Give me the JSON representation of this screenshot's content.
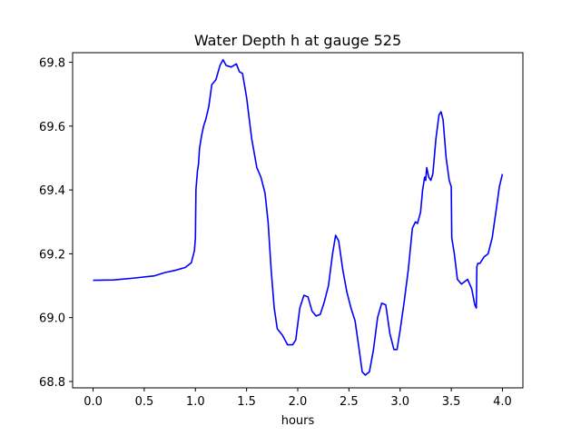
{
  "chart_data": {
    "type": "line",
    "title": "Water Depth h at gauge 525",
    "xlabel": "hours",
    "ylabel": "",
    "xlim": [
      -0.2,
      4.2
    ],
    "ylim": [
      68.78,
      69.83
    ],
    "x_ticks": [
      0.0,
      0.5,
      1.0,
      1.5,
      2.0,
      2.5,
      3.0,
      3.5,
      4.0
    ],
    "x_tick_labels": [
      "0.0",
      "0.5",
      "1.0",
      "1.5",
      "2.0",
      "2.5",
      "3.0",
      "3.5",
      "4.0"
    ],
    "y_ticks": [
      68.8,
      69.0,
      69.2,
      69.4,
      69.6,
      69.8
    ],
    "y_tick_labels": [
      "68.8",
      "69.0",
      "69.2",
      "69.4",
      "69.6",
      "69.8"
    ],
    "grid": false,
    "legend": "none",
    "series": [
      {
        "color": "#0000ff",
        "points": [
          [
            0.0,
            69.117
          ],
          [
            0.2,
            69.118
          ],
          [
            0.4,
            69.124
          ],
          [
            0.6,
            69.131
          ],
          [
            0.7,
            69.141
          ],
          [
            0.8,
            69.148
          ],
          [
            0.9,
            69.157
          ],
          [
            0.96,
            69.172
          ],
          [
            0.99,
            69.21
          ],
          [
            1.0,
            69.25
          ],
          [
            1.005,
            69.4
          ],
          [
            1.02,
            69.46
          ],
          [
            1.03,
            69.48
          ],
          [
            1.04,
            69.53
          ],
          [
            1.06,
            69.57
          ],
          [
            1.08,
            69.6
          ],
          [
            1.1,
            69.62
          ],
          [
            1.13,
            69.66
          ],
          [
            1.16,
            69.73
          ],
          [
            1.2,
            69.745
          ],
          [
            1.24,
            69.79
          ],
          [
            1.27,
            69.808
          ],
          [
            1.3,
            69.79
          ],
          [
            1.35,
            69.785
          ],
          [
            1.4,
            69.795
          ],
          [
            1.43,
            69.77
          ],
          [
            1.46,
            69.765
          ],
          [
            1.5,
            69.69
          ],
          [
            1.55,
            69.56
          ],
          [
            1.6,
            69.47
          ],
          [
            1.64,
            69.44
          ],
          [
            1.68,
            69.39
          ],
          [
            1.71,
            69.3
          ],
          [
            1.74,
            69.15
          ],
          [
            1.77,
            69.03
          ],
          [
            1.8,
            68.965
          ],
          [
            1.85,
            68.945
          ],
          [
            1.9,
            68.915
          ],
          [
            1.95,
            68.915
          ],
          [
            1.98,
            68.93
          ],
          [
            2.02,
            69.03
          ],
          [
            2.06,
            69.07
          ],
          [
            2.1,
            69.065
          ],
          [
            2.14,
            69.02
          ],
          [
            2.18,
            69.005
          ],
          [
            2.22,
            69.01
          ],
          [
            2.26,
            69.05
          ],
          [
            2.3,
            69.1
          ],
          [
            2.34,
            69.2
          ],
          [
            2.37,
            69.258
          ],
          [
            2.4,
            69.24
          ],
          [
            2.44,
            69.15
          ],
          [
            2.48,
            69.08
          ],
          [
            2.52,
            69.03
          ],
          [
            2.56,
            68.99
          ],
          [
            2.6,
            68.9
          ],
          [
            2.63,
            68.83
          ],
          [
            2.66,
            68.82
          ],
          [
            2.7,
            68.83
          ],
          [
            2.74,
            68.9
          ],
          [
            2.78,
            69.0
          ],
          [
            2.82,
            69.045
          ],
          [
            2.86,
            69.04
          ],
          [
            2.9,
            68.95
          ],
          [
            2.94,
            68.9
          ],
          [
            2.97,
            68.9
          ],
          [
            3.0,
            68.96
          ],
          [
            3.04,
            69.05
          ],
          [
            3.08,
            69.15
          ],
          [
            3.12,
            69.28
          ],
          [
            3.15,
            69.3
          ],
          [
            3.17,
            69.295
          ],
          [
            3.2,
            69.33
          ],
          [
            3.22,
            69.4
          ],
          [
            3.24,
            69.44
          ],
          [
            3.25,
            69.43
          ],
          [
            3.26,
            69.47
          ],
          [
            3.28,
            69.44
          ],
          [
            3.3,
            69.43
          ],
          [
            3.32,
            69.45
          ],
          [
            3.35,
            69.56
          ],
          [
            3.38,
            69.635
          ],
          [
            3.4,
            69.645
          ],
          [
            3.42,
            69.62
          ],
          [
            3.45,
            69.5
          ],
          [
            3.48,
            69.43
          ],
          [
            3.5,
            69.41
          ],
          [
            3.505,
            69.25
          ],
          [
            3.53,
            69.2
          ],
          [
            3.56,
            69.12
          ],
          [
            3.6,
            69.105
          ],
          [
            3.62,
            69.11
          ],
          [
            3.66,
            69.12
          ],
          [
            3.7,
            69.09
          ],
          [
            3.73,
            69.04
          ],
          [
            3.745,
            69.03
          ],
          [
            3.75,
            69.16
          ],
          [
            3.76,
            69.17
          ],
          [
            3.78,
            69.17
          ],
          [
            3.82,
            69.19
          ],
          [
            3.86,
            69.2
          ],
          [
            3.9,
            69.25
          ],
          [
            3.94,
            69.34
          ],
          [
            3.97,
            69.41
          ],
          [
            4.0,
            69.45
          ]
        ]
      }
    ]
  }
}
